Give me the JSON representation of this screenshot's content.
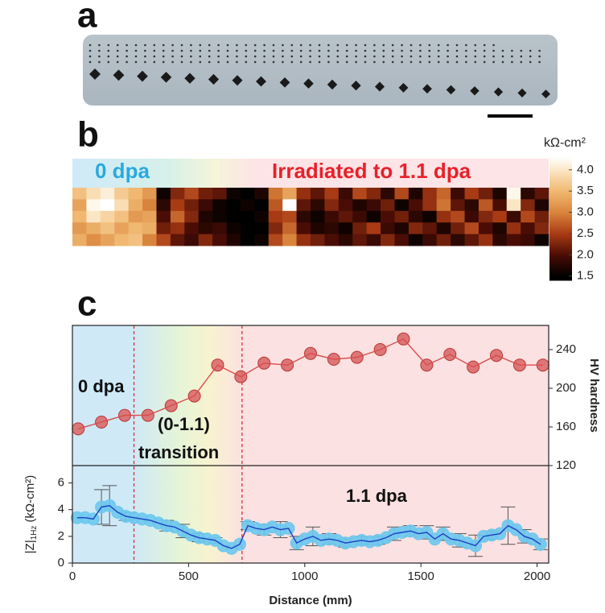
{
  "panel_labels": [
    "a",
    "b",
    "c"
  ],
  "chart_data": [
    {
      "type": "heatmap",
      "header_left": "0 dpa",
      "header_right": "Irradiated to 1.1 dpa",
      "colorbar_title": "kΩ-cm²",
      "clim": [
        1.4,
        4.3
      ],
      "cticks": [
        {
          "value": 1.5,
          "label": "1.5"
        },
        {
          "value": 2,
          "label": "2.0"
        },
        {
          "value": 2.5,
          "label": "2.5"
        },
        {
          "value": 3,
          "label": "3.0"
        },
        {
          "value": 3.5,
          "label": "3.5"
        },
        {
          "value": 4,
          "label": "4.0"
        }
      ],
      "values": [
        [
          3.6,
          3.9,
          4.1,
          3.7,
          3.5,
          3.2,
          1.6,
          2.3,
          2.6,
          2.2,
          2.1,
          1.6,
          1.5,
          1.7,
          2.9,
          3.3,
          2.4,
          2.1,
          2.5,
          1.9,
          2.6,
          2.3,
          1.8,
          2.6,
          1.7,
          2.4,
          2.8,
          1.9,
          2.5,
          2.2,
          1.7,
          4.2,
          1.8,
          2.1
        ],
        [
          3.3,
          4.2,
          4.3,
          3.9,
          3.4,
          3.0,
          1.8,
          2.5,
          2.2,
          1.9,
          1.6,
          1.5,
          1.6,
          1.5,
          2.7,
          4.3,
          2.1,
          1.8,
          2.3,
          2.0,
          1.7,
          1.9,
          2.2,
          1.6,
          2.0,
          2.4,
          2.9,
          2.1,
          1.8,
          2.7,
          2.0,
          4.0,
          2.3,
          1.7
        ],
        [
          3.5,
          4.0,
          3.8,
          3.6,
          3.2,
          3.3,
          2.0,
          2.8,
          2.3,
          1.7,
          1.6,
          1.5,
          1.5,
          1.6,
          2.5,
          2.6,
          1.8,
          1.6,
          1.9,
          2.1,
          1.9,
          1.6,
          2.0,
          2.2,
          1.8,
          1.6,
          2.4,
          2.6,
          1.9,
          2.3,
          2.5,
          1.9,
          2.6,
          2.2
        ],
        [
          3.2,
          3.4,
          3.6,
          3.3,
          3.5,
          3.4,
          2.2,
          2.4,
          2.0,
          1.8,
          1.9,
          1.6,
          1.5,
          1.5,
          2.3,
          2.8,
          2.0,
          1.7,
          1.8,
          1.6,
          2.2,
          2.5,
          1.9,
          1.7,
          2.3,
          2.1,
          1.7,
          2.2,
          2.6,
          2.0,
          1.7,
          2.4,
          2.0,
          2.3
        ],
        [
          3.4,
          3.1,
          3.3,
          3.5,
          3.6,
          3.0,
          2.6,
          2.1,
          1.9,
          2.3,
          2.0,
          1.7,
          1.5,
          1.6,
          2.6,
          3.0,
          2.4,
          2.2,
          2.0,
          1.8,
          2.1,
          1.9,
          2.3,
          2.0,
          1.6,
          1.9,
          2.2,
          1.8,
          2.1,
          2.4,
          1.8,
          2.0,
          1.9,
          1.6
        ]
      ]
    },
    {
      "type": "line",
      "x_label": "Distance (mm)",
      "y_label": "|Z|",
      "y_label_sub": "1Hz",
      "y_label_unit": "(kΩ-cm²)",
      "y2_label": "HV hardness",
      "xlim": [
        0,
        2050
      ],
      "xticks": [
        0,
        500,
        1000,
        1500,
        2000
      ],
      "ylim": [
        0,
        7.3
      ],
      "yticks": [
        0,
        2,
        4,
        6
      ],
      "y2lim": [
        120,
        265
      ],
      "y2ticks": [
        120,
        160,
        200,
        240
      ],
      "region_boundaries": [
        265,
        730
      ],
      "annotations": [
        "0 dpa",
        "(0-1.1)",
        "transition",
        "1.1 dpa"
      ],
      "series": [
        {
          "name": "HV hardness",
          "axis": "y2",
          "color": "#d94c4c",
          "x": [
            25,
            125,
            225,
            325,
            425,
            525,
            625,
            725,
            825,
            925,
            1025,
            1125,
            1225,
            1325,
            1425,
            1525,
            1625,
            1725,
            1825,
            1925,
            2025
          ],
          "values": [
            158,
            165,
            172,
            172,
            182,
            192,
            224,
            212,
            226,
            224,
            236,
            230,
            232,
            240,
            251,
            224,
            235,
            222,
            234,
            224,
            224
          ]
        },
        {
          "name": "|Z|1Hz",
          "color": "#1f3fbf",
          "x": [
            20,
            55,
            90,
            125,
            160,
            195,
            230,
            265,
            300,
            335,
            370,
            405,
            440,
            475,
            510,
            545,
            580,
            615,
            650,
            685,
            720,
            755,
            790,
            825,
            860,
            895,
            930,
            965,
            1000,
            1035,
            1070,
            1105,
            1140,
            1175,
            1210,
            1245,
            1280,
            1315,
            1350,
            1385,
            1420,
            1455,
            1490,
            1525,
            1560,
            1595,
            1630,
            1665,
            1700,
            1735,
            1770,
            1805,
            1840,
            1875,
            1910,
            1945,
            1980,
            2015
          ],
          "values": [
            3.4,
            3.4,
            3.3,
            4.2,
            4.3,
            3.8,
            3.5,
            3.4,
            3.3,
            3.2,
            3.0,
            2.8,
            2.7,
            2.4,
            2.1,
            1.9,
            1.8,
            1.7,
            1.3,
            1.1,
            1.4,
            2.8,
            2.6,
            2.5,
            2.7,
            2.5,
            2.6,
            1.5,
            1.8,
            2.0,
            1.7,
            1.8,
            1.7,
            1.5,
            1.6,
            1.7,
            1.6,
            1.7,
            1.9,
            2.2,
            2.3,
            2.4,
            2.2,
            2.3,
            1.8,
            2.2,
            1.8,
            1.7,
            1.5,
            1.3,
            2.0,
            2.1,
            2.2,
            2.8,
            2.5,
            2.0,
            1.8,
            1.4
          ],
          "errors": [
            null,
            null,
            null,
            1.3,
            1.5,
            null,
            0.3,
            null,
            null,
            null,
            null,
            0.4,
            null,
            0.5,
            null,
            0.3,
            null,
            0.2,
            null,
            null,
            null,
            0.3,
            null,
            0.4,
            null,
            0.6,
            null,
            0.5,
            null,
            0.7,
            null,
            0.4,
            null,
            0.3,
            null,
            0.3,
            null,
            0.3,
            null,
            0.5,
            null,
            0.4,
            null,
            0.5,
            null,
            0.5,
            null,
            0.5,
            null,
            0.8,
            null,
            0.3,
            null,
            1.4,
            null,
            0.5,
            null,
            0.4
          ]
        }
      ]
    }
  ]
}
